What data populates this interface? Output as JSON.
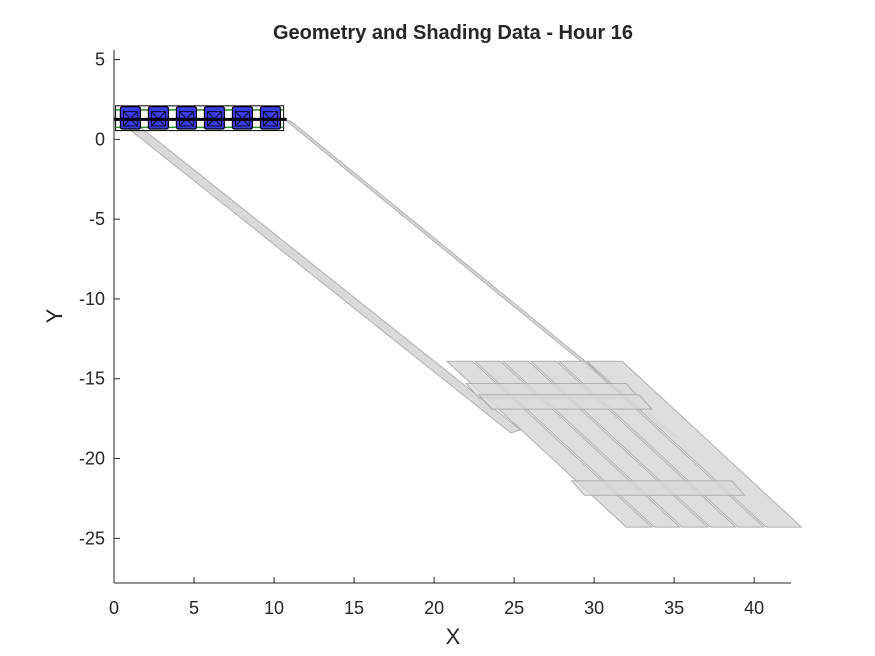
{
  "chart_data": {
    "type": "other",
    "title": "Geometry and Shading Data - Hour 16",
    "xlabel": "X",
    "ylabel": "Y",
    "xlim": [
      0,
      42.3
    ],
    "ylim": [
      -27.8,
      5.6
    ],
    "xticks": [
      0,
      5,
      10,
      15,
      20,
      25,
      30,
      35,
      40
    ],
    "yticks": [
      5,
      0,
      -5,
      -10,
      -15,
      -20,
      -25
    ],
    "grid": false,
    "colors": {
      "module_fill": "#3a3ae6",
      "module_edge": "#000000",
      "shadow_fill": "#d9d9d9",
      "shadow_edge": "#b0b0b0",
      "rack_line": "#000000",
      "rack_edge_green": "#2e8b2e"
    },
    "rack": {
      "x": [
        0.1,
        10.6
      ],
      "y": 1.25,
      "module_rows_y": [
        0.75,
        1.85
      ]
    },
    "modules": [
      {
        "x0": 0.4,
        "x1": 1.65,
        "y0": 0.65,
        "y1": 2.05
      },
      {
        "x0": 2.15,
        "x1": 3.4,
        "y0": 0.65,
        "y1": 2.05
      },
      {
        "x0": 3.9,
        "x1": 5.15,
        "y0": 0.65,
        "y1": 2.05
      },
      {
        "x0": 5.65,
        "x1": 6.9,
        "y0": 0.65,
        "y1": 2.05
      },
      {
        "x0": 7.4,
        "x1": 8.65,
        "y0": 0.65,
        "y1": 2.05
      },
      {
        "x0": 9.15,
        "x1": 10.4,
        "y0": 0.65,
        "y1": 2.05
      }
    ],
    "shadows": {
      "shift": [
        11.2,
        -10.2
      ],
      "panels": [
        {
          "x0": 20.8,
          "w": 1.6,
          "y_top": -13.9,
          "y_bot": -24.3,
          "dx": 11.2
        },
        {
          "x0": 22.55,
          "w": 1.6,
          "y_top": -13.9,
          "y_bot": -24.3,
          "dx": 11.2
        },
        {
          "x0": 24.3,
          "w": 1.6,
          "y_top": -13.9,
          "y_bot": -24.3,
          "dx": 11.2
        },
        {
          "x0": 26.05,
          "w": 1.6,
          "y_top": -13.9,
          "y_bot": -24.3,
          "dx": 11.2
        },
        {
          "x0": 27.8,
          "w": 1.6,
          "y_top": -13.9,
          "y_bot": -24.3,
          "dx": 11.2
        },
        {
          "x0": 29.55,
          "w": 2.2,
          "y_top": -13.9,
          "y_bot": -24.3,
          "dx": 11.2
        }
      ],
      "bands": [
        {
          "x0": 22.0,
          "x1": 32.0,
          "y_top": -15.3,
          "y_bot": -16.2,
          "dx": 0.8
        },
        {
          "x0": 22.8,
          "x1": 32.8,
          "y_top": -16.0,
          "y_bot": -16.9,
          "dx": 0.8
        },
        {
          "x0": 28.6,
          "x1": 38.6,
          "y_top": -21.4,
          "y_bot": -22.3,
          "dx": 0.8
        }
      ],
      "streaks": [
        {
          "points": [
            [
              0.5,
              1.0
            ],
            [
              1.1,
              1.2
            ],
            [
              25.4,
              -18.2
            ],
            [
              24.8,
              -18.4
            ]
          ]
        },
        {
          "points": [
            [
              10.6,
              1.3
            ],
            [
              11.1,
              1.1
            ],
            [
              35.3,
              -18.7
            ],
            [
              34.8,
              -18.5
            ]
          ]
        }
      ]
    }
  }
}
